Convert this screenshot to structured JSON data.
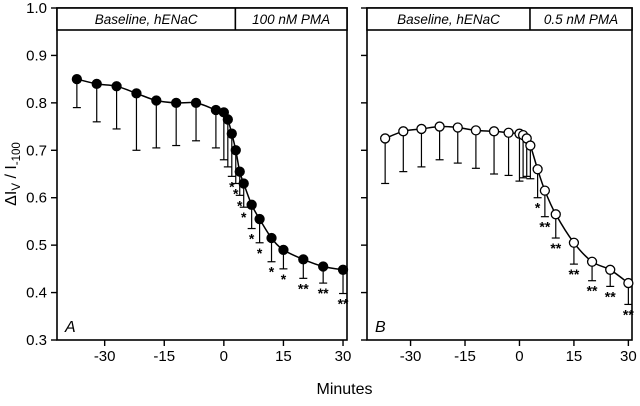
{
  "colors": {
    "foreground": "#000000",
    "background": "#ffffff"
  },
  "chart_data": {
    "type": "scatter",
    "title": "",
    "xlabel": "Minutes",
    "ylabel": "ΔI_V / I_-100",
    "ylabel_parts": [
      {
        "text": "ΔI",
        "sub": false
      },
      {
        "text": "V",
        "sub": true
      },
      {
        "text": " / I",
        "sub": false
      },
      {
        "text": "-100",
        "sub": true
      }
    ],
    "xlim": [
      -42,
      31
    ],
    "ylim": [
      0.3,
      1.0
    ],
    "x_ticks": [
      {
        "v": -30,
        "label": "-30"
      },
      {
        "v": -15,
        "label": "-15"
      },
      {
        "v": 0,
        "label": "0"
      },
      {
        "v": 15,
        "label": "15"
      },
      {
        "v": 30,
        "label": "30"
      }
    ],
    "y_ticks": [
      {
        "v": 0.3,
        "label": "0.3"
      },
      {
        "v": 0.4,
        "label": "0.4"
      },
      {
        "v": 0.5,
        "label": "0.5"
      },
      {
        "v": 0.6,
        "label": "0.6"
      },
      {
        "v": 0.7,
        "label": "0.7"
      },
      {
        "v": 0.8,
        "label": "0.8"
      },
      {
        "v": 0.9,
        "label": "0.9"
      },
      {
        "v": 1.0,
        "label": "1.0"
      }
    ],
    "panels": [
      {
        "letter": "A",
        "header_left": "Baseline, hENaC",
        "header_right": "100 nM PMA",
        "marker": "filled",
        "show_y_tick_labels": true,
        "points": [
          {
            "x": -37,
            "y": 0.85,
            "e": 0.06,
            "s": ""
          },
          {
            "x": -32,
            "y": 0.84,
            "e": 0.08,
            "s": ""
          },
          {
            "x": -27,
            "y": 0.835,
            "e": 0.09,
            "s": ""
          },
          {
            "x": -22,
            "y": 0.82,
            "e": 0.12,
            "s": ""
          },
          {
            "x": -17,
            "y": 0.805,
            "e": 0.1,
            "s": ""
          },
          {
            "x": -12,
            "y": 0.8,
            "e": 0.09,
            "s": ""
          },
          {
            "x": -7,
            "y": 0.8,
            "e": 0.08,
            "s": ""
          },
          {
            "x": -2,
            "y": 0.785,
            "e": 0.08,
            "s": ""
          },
          {
            "x": 0,
            "y": 0.78,
            "e": 0.1,
            "s": ""
          },
          {
            "x": 1,
            "y": 0.765,
            "e": 0.1,
            "s": ""
          },
          {
            "x": 2,
            "y": 0.735,
            "e": 0.09,
            "s": "*"
          },
          {
            "x": 3,
            "y": 0.7,
            "e": 0.07,
            "s": "*"
          },
          {
            "x": 4,
            "y": 0.655,
            "e": 0.05,
            "s": "*"
          },
          {
            "x": 5,
            "y": 0.63,
            "e": 0.05,
            "s": "*"
          },
          {
            "x": 7,
            "y": 0.585,
            "e": 0.05,
            "s": "*"
          },
          {
            "x": 9,
            "y": 0.555,
            "e": 0.05,
            "s": "*"
          },
          {
            "x": 12,
            "y": 0.515,
            "e": 0.05,
            "s": "*"
          },
          {
            "x": 15,
            "y": 0.49,
            "e": 0.04,
            "s": "*"
          },
          {
            "x": 20,
            "y": 0.47,
            "e": 0.04,
            "s": "**"
          },
          {
            "x": 25,
            "y": 0.455,
            "e": 0.035,
            "s": "**"
          },
          {
            "x": 30,
            "y": 0.448,
            "e": 0.05,
            "s": "**"
          }
        ]
      },
      {
        "letter": "B",
        "header_left": "Baseline, hENaC",
        "header_right": "0.5 nM PMA",
        "marker": "open",
        "show_y_tick_labels": false,
        "points": [
          {
            "x": -37,
            "y": 0.725,
            "e": 0.095,
            "s": ""
          },
          {
            "x": -32,
            "y": 0.74,
            "e": 0.085,
            "s": ""
          },
          {
            "x": -27,
            "y": 0.745,
            "e": 0.08,
            "s": ""
          },
          {
            "x": -22,
            "y": 0.75,
            "e": 0.07,
            "s": ""
          },
          {
            "x": -17,
            "y": 0.748,
            "e": 0.075,
            "s": ""
          },
          {
            "x": -12,
            "y": 0.742,
            "e": 0.08,
            "s": ""
          },
          {
            "x": -7,
            "y": 0.74,
            "e": 0.09,
            "s": ""
          },
          {
            "x": -3,
            "y": 0.737,
            "e": 0.09,
            "s": ""
          },
          {
            "x": 0,
            "y": 0.735,
            "e": 0.1,
            "s": ""
          },
          {
            "x": 1,
            "y": 0.732,
            "e": 0.09,
            "s": ""
          },
          {
            "x": 2,
            "y": 0.725,
            "e": 0.08,
            "s": ""
          },
          {
            "x": 3,
            "y": 0.71,
            "e": 0.07,
            "s": ""
          },
          {
            "x": 5,
            "y": 0.66,
            "e": 0.06,
            "s": "*"
          },
          {
            "x": 7,
            "y": 0.615,
            "e": 0.055,
            "s": "**"
          },
          {
            "x": 10,
            "y": 0.565,
            "e": 0.05,
            "s": "**"
          },
          {
            "x": 15,
            "y": 0.505,
            "e": 0.045,
            "s": "**"
          },
          {
            "x": 20,
            "y": 0.465,
            "e": 0.04,
            "s": "**"
          },
          {
            "x": 25,
            "y": 0.448,
            "e": 0.035,
            "s": "**"
          },
          {
            "x": 30,
            "y": 0.42,
            "e": 0.045,
            "s": "**"
          }
        ]
      }
    ]
  }
}
